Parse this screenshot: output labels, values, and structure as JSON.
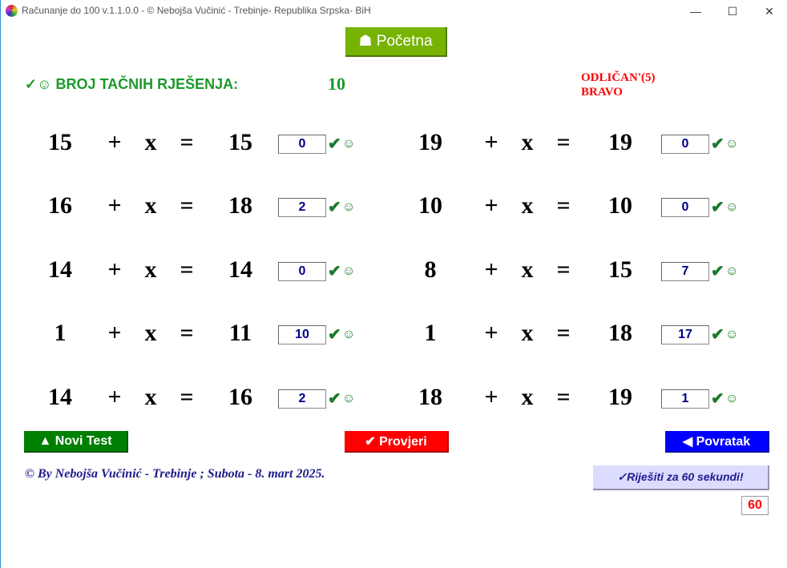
{
  "window": {
    "title": "Računanje do 100 v.1.1.0.0 - © Nebojša Vučinić - Trebinje- Republika Srpska- BiH",
    "minimize": "—",
    "maximize": "☐",
    "close": "✕"
  },
  "home_button": {
    "icon": "⌂",
    "label": "☗ Početna"
  },
  "header": {
    "label": "✓☺ BROJ TAČNIH RJEŠENJA:",
    "score": "10",
    "grade_line1": "ODLIČAN'(5)",
    "grade_line2": "BRAVO"
  },
  "equations": {
    "left": [
      {
        "a": "15",
        "op": "+",
        "x": "x",
        "eq": "=",
        "b": "15",
        "answer": "0"
      },
      {
        "a": "16",
        "op": "+",
        "x": "x",
        "eq": "=",
        "b": "18",
        "answer": "2"
      },
      {
        "a": "14",
        "op": "+",
        "x": "x",
        "eq": "=",
        "b": "14",
        "answer": "0"
      },
      {
        "a": "1",
        "op": "+",
        "x": "x",
        "eq": "=",
        "b": "11",
        "answer": "10"
      },
      {
        "a": "14",
        "op": "+",
        "x": "x",
        "eq": "=",
        "b": "16",
        "answer": "2"
      }
    ],
    "right": [
      {
        "a": "19",
        "op": "+",
        "x": "x",
        "eq": "=",
        "b": "19",
        "answer": "0"
      },
      {
        "a": "10",
        "op": "+",
        "x": "x",
        "eq": "=",
        "b": "10",
        "answer": "0"
      },
      {
        "a": "8",
        "op": "+",
        "x": "x",
        "eq": "=",
        "b": "15",
        "answer": "7"
      },
      {
        "a": "1",
        "op": "+",
        "x": "x",
        "eq": "=",
        "b": "18",
        "answer": "17"
      },
      {
        "a": "18",
        "op": "+",
        "x": "x",
        "eq": "=",
        "b": "19",
        "answer": "1"
      }
    ],
    "check_mark": "✔",
    "smiley": "☺"
  },
  "buttons": {
    "new_test": "▲ Novi Test",
    "check": "✔ Provjeri",
    "back": "◀ Povratak",
    "timed": "✓Riješiti za 60 sekundi!"
  },
  "colors": {
    "new_test": "#008000",
    "check": "#ff0000",
    "back": "#0000ff",
    "home": "#77b300",
    "timed": "#dcdcff"
  },
  "footer": "© By Nebojša Vučinić - Trebinje ; Subota - 8. mart 2025.",
  "timer": "60"
}
